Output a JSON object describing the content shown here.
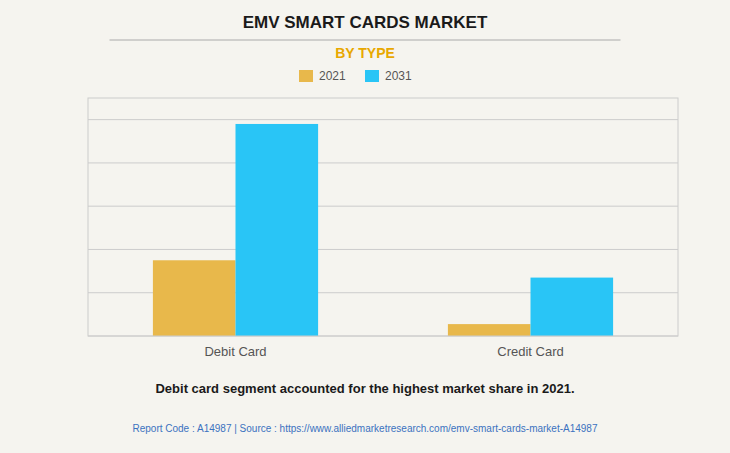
{
  "chart_data": {
    "type": "bar",
    "title": "EMV SMART CARDS MARKET",
    "subtitle": "BY TYPE",
    "categories": [
      "Debit Card",
      "Credit Card"
    ],
    "series": [
      {
        "name": "2021",
        "color": "#E8B84B",
        "values": [
          3.5,
          0.55
        ]
      },
      {
        "name": "2031",
        "color": "#29C5F6",
        "values": [
          9.8,
          2.7
        ]
      }
    ],
    "ylim": [
      0,
      11
    ],
    "yticks": [
      0,
      2,
      4,
      6,
      8,
      10
    ],
    "grid": true,
    "legend": "top",
    "tick_labels": "x",
    "annotations": [
      "Debit card segment accounted for the highest market share in 2021.",
      "Report Code : A14987  |  Source : https://www.alliedmarketresearch.com/emv-smart-cards-market-A14987"
    ]
  }
}
